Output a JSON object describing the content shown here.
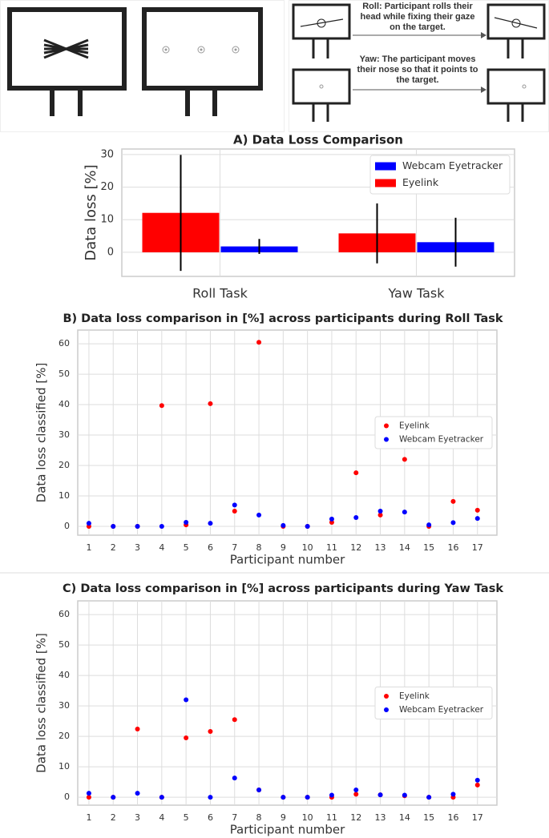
{
  "diagram": {
    "roll_text": "Roll: Participant rolls their head while fixing their gaze on the target.",
    "yaw_text": "Yaw: The participant moves their nose so that it points to the target."
  },
  "chart_data": [
    {
      "type": "bar",
      "title": "A) Data Loss Comparison",
      "ylabel": "Data loss [%]",
      "categories": [
        "Roll Task",
        "Yaw Task"
      ],
      "series": [
        {
          "name": "Eyelink",
          "color": "#ff0000",
          "values": [
            12.1,
            5.8
          ],
          "errors": [
            17.8,
            9.2
          ]
        },
        {
          "name": "Webcam Eyetracker",
          "color": "#0000ff",
          "values": [
            1.8,
            3.1
          ],
          "errors": [
            2.3,
            7.5
          ]
        }
      ],
      "ylim": [
        -7.4,
        31.7
      ],
      "yticks": [
        0,
        10,
        20,
        30
      ],
      "grid": true,
      "legend": "upper right"
    },
    {
      "type": "scatter",
      "title": "B) Data loss comparison in [%] across participants during Roll Task",
      "xlabel": "Participant number",
      "ylabel": "Data loss classified [%]",
      "x": [
        1,
        2,
        3,
        4,
        5,
        6,
        7,
        8,
        9,
        10,
        11,
        12,
        13,
        14,
        15,
        16,
        17
      ],
      "series": [
        {
          "name": "Eyelink",
          "color": "#ff0000",
          "values": [
            0,
            0,
            0,
            39.7,
            0.5,
            40.3,
            5,
            60.5,
            0,
            0,
            1.3,
            17.6,
            3.7,
            22,
            0,
            8.2,
            5.3
          ]
        },
        {
          "name": "Webcam Eyetracker",
          "color": "#0000ff",
          "values": [
            1,
            0,
            0,
            0,
            1.3,
            1,
            7,
            3.7,
            0.3,
            0,
            2.4,
            2.9,
            5,
            4.7,
            0.5,
            1.2,
            2.6
          ]
        }
      ],
      "xlim": [
        0.54,
        17.8
      ],
      "ylim": [
        -2.9,
        64.5
      ],
      "xticks": [
        1,
        2,
        3,
        4,
        5,
        6,
        7,
        8,
        9,
        10,
        11,
        12,
        13,
        14,
        15,
        16,
        17
      ],
      "yticks": [
        0,
        10,
        20,
        30,
        40,
        50,
        60
      ],
      "grid": true,
      "legend": "center right"
    },
    {
      "type": "scatter",
      "title": "C) Data loss comparison in [%] across participants during Yaw Task",
      "xlabel": "Participant number",
      "ylabel": "Data loss classified [%]",
      "x": [
        1,
        2,
        3,
        4,
        5,
        6,
        7,
        8,
        9,
        10,
        11,
        12,
        13,
        14,
        15,
        16,
        17
      ],
      "series": [
        {
          "name": "Eyelink",
          "color": "#ff0000",
          "values": [
            0,
            0,
            22.4,
            0,
            19.5,
            21.6,
            25.5,
            2.4,
            0,
            0,
            0,
            1,
            0.8,
            0.5,
            0,
            0,
            4
          ]
        },
        {
          "name": "Webcam Eyetracker",
          "color": "#0000ff",
          "values": [
            1.3,
            0,
            1.3,
            0,
            32,
            0,
            6.3,
            2.4,
            0,
            0,
            0.7,
            2.4,
            0.8,
            0.7,
            0,
            1,
            5.6
          ]
        }
      ],
      "xlim": [
        0.54,
        17.8
      ],
      "ylim": [
        -2.6,
        64.5
      ],
      "xticks": [
        1,
        2,
        3,
        4,
        5,
        6,
        7,
        8,
        9,
        10,
        11,
        12,
        13,
        14,
        15,
        16,
        17
      ],
      "yticks": [
        0,
        10,
        20,
        30,
        40,
        50,
        60
      ],
      "grid": true,
      "legend": "center right"
    }
  ]
}
